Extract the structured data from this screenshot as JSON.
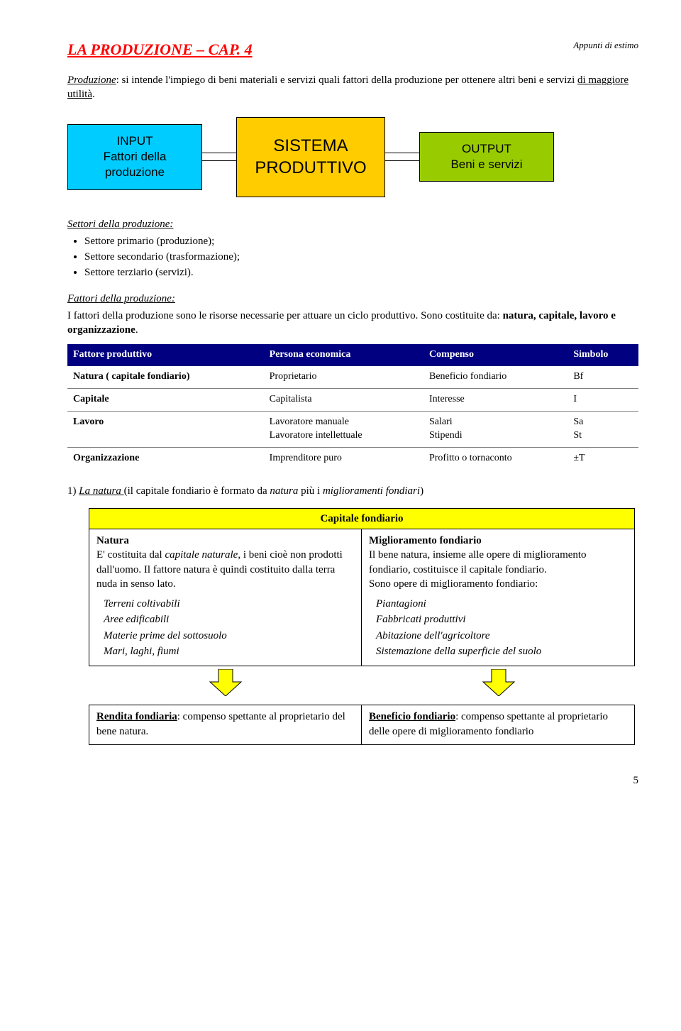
{
  "header": {
    "title": "LA PRODUZIONE – CAP. 4",
    "topRight": "Appunti di estimo"
  },
  "definition": {
    "lead": "Produzione",
    "text": ": si intende l'impiego di beni materiali e servizi quali fattori della produzione per ottenere altri beni e servizi ",
    "tail": "di maggiore utilità",
    "end": "."
  },
  "flow": {
    "input_l1": "INPUT",
    "input_l2": "Fattori della produzione",
    "system_l1": "SISTEMA",
    "system_l2": "PRODUTTIVO",
    "output_l1": "OUTPUT",
    "output_l2": "Beni e servizi",
    "colors": {
      "input": "#00ccff",
      "system": "#ffcc00",
      "output": "#99cc00"
    }
  },
  "settori": {
    "heading": "Settori della produzione:",
    "items": [
      "Settore primario (produzione);",
      "Settore secondario (trasformazione);",
      "Settore terziario (servizi)."
    ]
  },
  "fattori": {
    "heading": "Fattori della produzione:",
    "p1a": "I fattori della produzione sono le risorse necessarie per attuare un ciclo produttivo. Sono costituite da: ",
    "p1b": "natura, capitale, lavoro e organizzazione",
    "p1c": "."
  },
  "table": {
    "headers": [
      "Fattore produttivo",
      "Persona economica",
      "Compenso",
      "Simbolo"
    ],
    "rows": [
      [
        "Natura ( capitale fondiario)",
        "Proprietario",
        "Beneficio fondiario",
        "Bf"
      ],
      [
        "Capitale",
        "Capitalista",
        "Interesse",
        "I"
      ],
      [
        "Lavoro",
        "Lavoratore manuale\nLavoratore intellettuale",
        "Salari\nStipendi",
        "Sa\nSt"
      ],
      [
        "Organizzazione",
        "Imprenditore puro",
        "Profitto o tornaconto",
        "±T"
      ]
    ],
    "header_bg": "#000080"
  },
  "natura_intro": {
    "lead": "1) ",
    "u": "La natura ",
    "text": "(il capitale fondiario è formato da ",
    "em1": "natura",
    "text2": " più i ",
    "em2": "miglioramenti fondiari",
    "text3": ")"
  },
  "capitale_fondiario": {
    "title": "Capitale fondiario",
    "title_bg": "#ffff00",
    "left": {
      "h": "Natura",
      "body1": "E' costituita dal ",
      "body1_em": "capitale naturale",
      "body2": ", i beni cioè non prodotti dall'uomo. Il fattore natura è quindi costituito dalla terra nuda in senso lato.",
      "list": [
        "Terreni coltivabili",
        "Aree edificabili",
        "Materie prime del sottosuolo",
        "Mari, laghi, fiumi"
      ],
      "result_h": "Rendita fondiaria",
      "result_t": ": compenso spettante al proprietario del bene natura."
    },
    "right": {
      "h": "Miglioramento fondiario",
      "body": "Il bene natura, insieme alle opere di miglioramento fondiario, costituisce il capitale fondiario.\nSono opere di miglioramento fondiario:",
      "list": [
        "Piantagioni",
        "Fabbricati produttivi",
        "Abitazione dell'agricoltore",
        "Sistemazione della superficie del suolo"
      ],
      "result_h": "Beneficio fondiario",
      "result_t": ": compenso spettante al proprietario delle opere di miglioramento fondiario"
    },
    "arrow_fill": "#ffff00"
  },
  "pagenum": "5"
}
